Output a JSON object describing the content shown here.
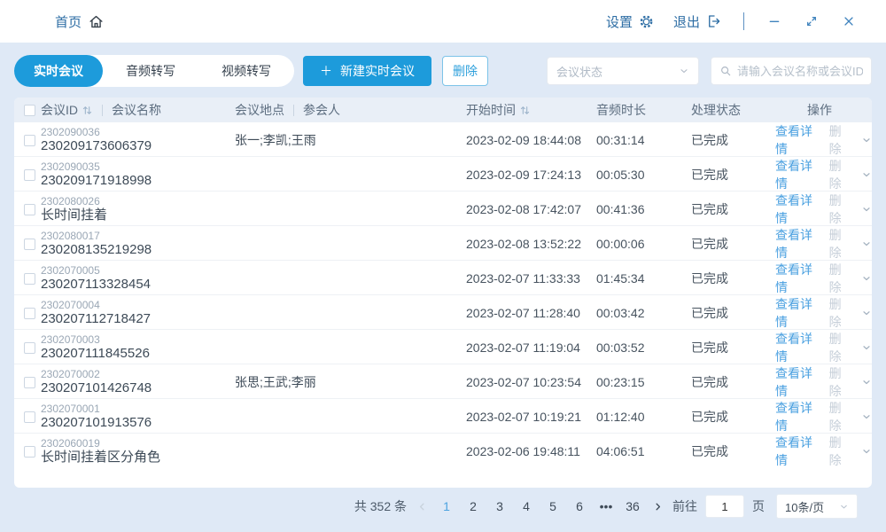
{
  "topbar": {
    "home_label": "首页",
    "settings_label": "设置",
    "logout_label": "退出"
  },
  "toolbar": {
    "tabs": [
      {
        "name": "tab-realtime-meeting",
        "label": "实时会议",
        "active": true
      },
      {
        "name": "tab-audio-transcribe",
        "label": "音频转写",
        "active": false
      },
      {
        "name": "tab-video-transcribe",
        "label": "视频转写",
        "active": false
      }
    ],
    "plus": "＋",
    "new_meeting_label": "新建实时会议",
    "delete_label": "删除",
    "status_filter_placeholder": "会议状态",
    "search_placeholder": "请输入会议名称或会议ID"
  },
  "table": {
    "headers": {
      "meeting_id": "会议ID",
      "meeting_name": "会议名称",
      "location": "会议地点",
      "participants": "参会人",
      "start_time": "开始时间",
      "audio_duration": "音频时长",
      "process_status": "处理状态",
      "actions": "操作"
    },
    "row_actions": {
      "view": "查看详情",
      "delete": "删除"
    },
    "rows": [
      {
        "id": "2302090036",
        "name": "230209173606379",
        "participants": "张一;李凯;王雨",
        "start_time": "2023-02-09 18:44:08",
        "duration": "00:31:14",
        "status": "已完成"
      },
      {
        "id": "2302090035",
        "name": "230209171918998",
        "participants": "",
        "start_time": "2023-02-09 17:24:13",
        "duration": "00:05:30",
        "status": "已完成"
      },
      {
        "id": "2302080026",
        "name": "长时间挂着",
        "participants": "",
        "start_time": "2023-02-08 17:42:07",
        "duration": "00:41:36",
        "status": "已完成"
      },
      {
        "id": "2302080017",
        "name": "230208135219298",
        "participants": "",
        "start_time": "2023-02-08 13:52:22",
        "duration": "00:00:06",
        "status": "已完成"
      },
      {
        "id": "2302070005",
        "name": "230207113328454",
        "participants": "",
        "start_time": "2023-02-07 11:33:33",
        "duration": "01:45:34",
        "status": "已完成"
      },
      {
        "id": "2302070004",
        "name": "230207112718427",
        "participants": "",
        "start_time": "2023-02-07 11:28:40",
        "duration": "00:03:42",
        "status": "已完成"
      },
      {
        "id": "2302070003",
        "name": "230207111845526",
        "participants": "",
        "start_time": "2023-02-07 11:19:04",
        "duration": "00:03:52",
        "status": "已完成"
      },
      {
        "id": "2302070002",
        "name": "230207101426748",
        "participants": "张思;王武;李丽",
        "start_time": "2023-02-07 10:23:54",
        "duration": "00:23:15",
        "status": "已完成"
      },
      {
        "id": "2302070001",
        "name": "230207101913576",
        "participants": "",
        "start_time": "2023-02-07 10:19:21",
        "duration": "01:12:40",
        "status": "已完成"
      },
      {
        "id": "2302060019",
        "name": "长时间挂着区分角色",
        "participants": "",
        "start_time": "2023-02-06 19:48:11",
        "duration": "04:06:51",
        "status": "已完成"
      }
    ]
  },
  "pagination": {
    "total_label": "共 352 条",
    "pages": [
      "1",
      "2",
      "3",
      "4",
      "5",
      "6",
      "•••",
      "36"
    ],
    "active_page": "1",
    "goto_label": "前往",
    "goto_value": "1",
    "goto_unit": "页",
    "page_size": "10条/页"
  },
  "colors": {
    "primary": "#1d9bdb",
    "link": "#4aa0e0",
    "topbar_text": "#2d6da4",
    "page_background": "#dfe9f6",
    "table_header_background": "#e9eff7"
  }
}
